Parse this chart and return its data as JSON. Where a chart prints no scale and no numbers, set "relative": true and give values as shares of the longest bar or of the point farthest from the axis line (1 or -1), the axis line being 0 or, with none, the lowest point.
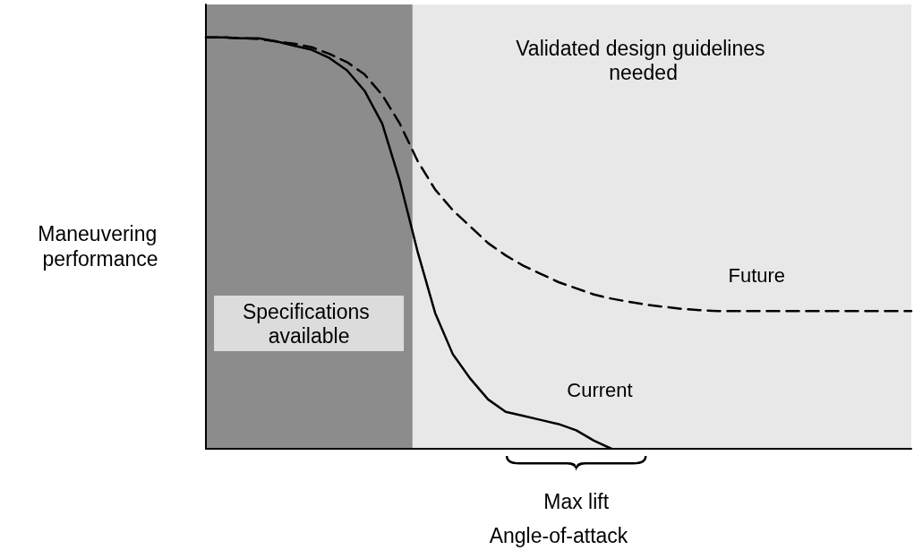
{
  "chart_data": {
    "type": "line",
    "relative": true,
    "xlabel": "Angle-of-attack",
    "ylabel": "Maneuvering performance",
    "legend": false,
    "grid": false,
    "marker": "none",
    "annotations": [
      "Specifications available",
      "Validated design guidelines needed",
      "Max lift"
    ],
    "categories": [
      null,
      null,
      null,
      null,
      null,
      null,
      null,
      null,
      null,
      null,
      null,
      null,
      null,
      null,
      null,
      null,
      null,
      null,
      null,
      null,
      null,
      null,
      null,
      null,
      null,
      null,
      null,
      null,
      null,
      null,
      null,
      null,
      null,
      null,
      null,
      null,
      null,
      null,
      null,
      null,
      null
    ],
    "series": [
      {
        "name": "Current",
        "color": "#000000",
        "line_style": "solid",
        "values": [
          1,
          1,
          0.998,
          0.998,
          0.99,
          0.98,
          0.97,
          0.95,
          0.92,
          0.87,
          0.79,
          0.65,
          0.48,
          0.33,
          0.23,
          0.17,
          0.12,
          0.09,
          0.08,
          0.07,
          0.06,
          0.045,
          0.02,
          0,
          null,
          null,
          null,
          null,
          null,
          null,
          null,
          null,
          null,
          null,
          null,
          null,
          null,
          null,
          null,
          null,
          null
        ]
      },
      {
        "name": "Future",
        "color": "#000000",
        "line_style": "dashed",
        "values": [
          1,
          1,
          0.998,
          0.996,
          0.99,
          0.985,
          0.976,
          0.96,
          0.94,
          0.91,
          0.86,
          0.79,
          0.7,
          0.63,
          0.58,
          0.54,
          0.5,
          0.47,
          0.445,
          0.425,
          0.405,
          0.39,
          0.375,
          0.365,
          0.357,
          0.35,
          0.345,
          0.34,
          0.337,
          0.335,
          0.335,
          0.335,
          0.335,
          0.335,
          0.335,
          0.335,
          0.335,
          0.335,
          0.335,
          0.335,
          0.335
        ]
      }
    ]
  }
}
